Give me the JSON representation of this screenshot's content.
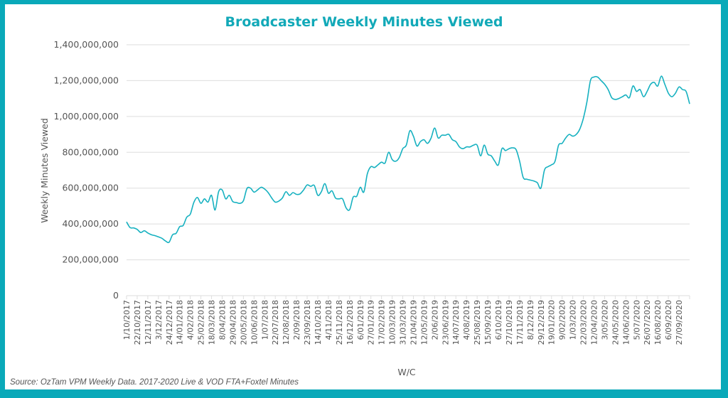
{
  "chart_data": {
    "type": "line",
    "title": "Broadcaster Weekly Minutes Viewed",
    "xlabel": "W/C",
    "ylabel": "Weekly Minutes Viewed",
    "ylim": [
      0,
      1400000000
    ],
    "yticks": [
      0,
      200000000,
      400000000,
      600000000,
      800000000,
      1000000000,
      1200000000,
      1400000000
    ],
    "ytick_labels": [
      "0",
      "200,000,000",
      "400,000,000",
      "600,000,000",
      "800,000,000",
      "1,000,000,000",
      "1,200,000,000",
      "1,400,000,000"
    ],
    "grid": "horizontal",
    "legend": "none",
    "line_color": "#16b1c0",
    "x_tick_labels": [
      "1/10/2017",
      "22/10/2017",
      "12/11/2017",
      "3/12/2017",
      "24/12/2017",
      "14/01/2018",
      "4/02/2018",
      "25/02/2018",
      "18/03/2018",
      "8/04/2018",
      "29/04/2018",
      "20/05/2018",
      "10/06/2018",
      "1/07/2018",
      "22/07/2018",
      "12/08/2018",
      "2/09/2018",
      "23/09/2018",
      "14/10/2018",
      "4/11/2018",
      "25/11/2018",
      "16/12/2018",
      "6/01/2019",
      "27/01/2019",
      "17/02/2019",
      "10/03/2019",
      "31/03/2019",
      "21/04/2019",
      "12/05/2019",
      "2/06/2019",
      "23/06/2019",
      "14/07/2019",
      "4/08/2019",
      "25/08/2019",
      "15/09/2019",
      "6/10/2019",
      "27/10/2019",
      "17/11/2019",
      "8/12/2019",
      "29/12/2019",
      "19/01/2020",
      "9/02/2020",
      "1/03/2020",
      "22/03/2020",
      "12/04/2020",
      "3/05/2020",
      "24/05/2020",
      "14/06/2020",
      "5/07/2020",
      "26/07/2020",
      "16/08/2020",
      "6/09/2020",
      "27/09/2020"
    ],
    "series": [
      {
        "name": "Weekly Minutes Viewed",
        "values_millions": [
          412,
          380,
          378,
          370,
          352,
          362,
          350,
          340,
          335,
          328,
          320,
          305,
          298,
          340,
          348,
          385,
          392,
          438,
          455,
          520,
          548,
          515,
          540,
          522,
          560,
          478,
          580,
          590,
          540,
          560,
          525,
          520,
          515,
          530,
          598,
          600,
          578,
          590,
          605,
          595,
          575,
          545,
          522,
          528,
          545,
          580,
          560,
          575,
          565,
          568,
          590,
          618,
          610,
          615,
          560,
          580,
          625,
          572,
          585,
          545,
          540,
          540,
          490,
          480,
          550,
          555,
          605,
          578,
          680,
          720,
          715,
          730,
          745,
          740,
          800,
          760,
          750,
          770,
          820,
          840,
          920,
          890,
          835,
          860,
          870,
          850,
          880,
          935,
          880,
          895,
          895,
          900,
          870,
          860,
          830,
          820,
          830,
          830,
          840,
          840,
          780,
          840,
          790,
          780,
          750,
          730,
          820,
          810,
          820,
          825,
          815,
          750,
          660,
          650,
          645,
          640,
          630,
          600,
          700,
          720,
          730,
          750,
          840,
          850,
          880,
          900,
          890,
          900,
          930,
          990,
          1080,
          1200,
          1220,
          1220,
          1200,
          1180,
          1150,
          1105,
          1095,
          1100,
          1110,
          1120,
          1105,
          1170,
          1140,
          1150,
          1110,
          1140,
          1180,
          1190,
          1170,
          1225,
          1180,
          1130,
          1110,
          1130,
          1165,
          1150,
          1140,
          1070
        ]
      }
    ]
  },
  "source_note": "Source: OzTam VPM  Weekly Data. 2017-2020 Live & VOD FTA+Foxtel Minutes"
}
